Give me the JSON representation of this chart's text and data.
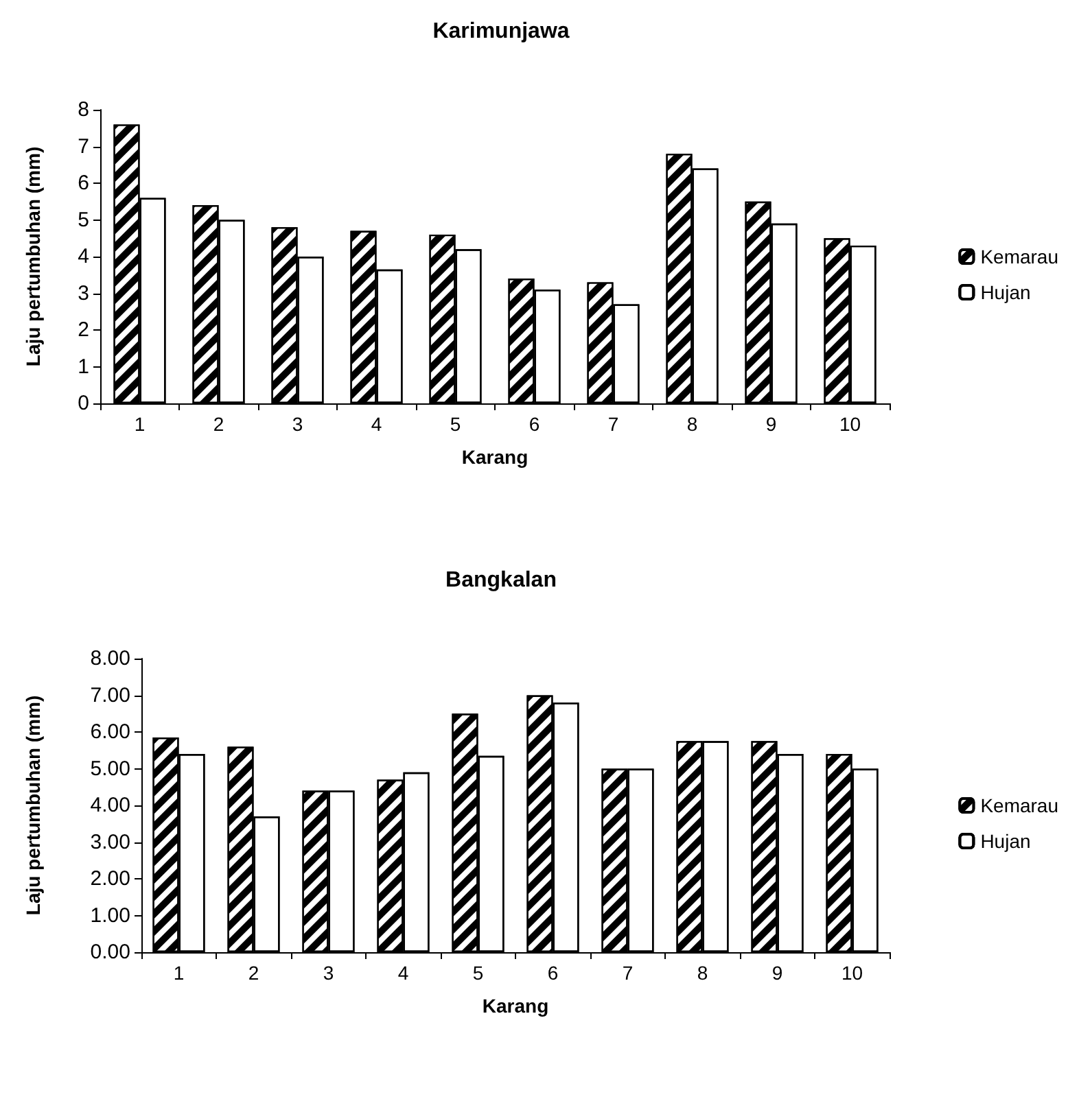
{
  "chart_data": [
    {
      "type": "bar",
      "title": "Karimunjawa",
      "xlabel": "Karang",
      "ylabel": "Laju pertumbuhan (mm)",
      "categories": [
        "1",
        "2",
        "3",
        "4",
        "5",
        "6",
        "7",
        "8",
        "9",
        "10"
      ],
      "series": [
        {
          "name": "Kemarau",
          "color": "#000000",
          "values": [
            7.6,
            5.4,
            4.8,
            4.7,
            4.6,
            3.4,
            3.3,
            6.8,
            5.5,
            4.5
          ]
        },
        {
          "name": "Hujan",
          "color": "#ffffff",
          "values": [
            5.6,
            5.0,
            4.0,
            3.65,
            4.2,
            3.1,
            2.7,
            6.4,
            4.9,
            4.3
          ]
        }
      ],
      "ylim": [
        0,
        8
      ],
      "yticks": [
        0,
        1,
        2,
        3,
        4,
        5,
        6,
        7,
        8
      ],
      "legend": "right",
      "grid": false
    },
    {
      "type": "bar",
      "title": "Bangkalan",
      "xlabel": "Karang",
      "ylabel": "Laju pertumbuhan (mm)",
      "categories": [
        "1",
        "2",
        "3",
        "4",
        "5",
        "6",
        "7",
        "8",
        "9",
        "10"
      ],
      "series": [
        {
          "name": "Kemarau",
          "color": "#000000",
          "values": [
            5.85,
            5.6,
            4.4,
            4.7,
            6.5,
            7.0,
            5.0,
            5.75,
            5.75,
            5.4
          ]
        },
        {
          "name": "Hujan",
          "color": "#ffffff",
          "values": [
            5.4,
            3.7,
            4.4,
            4.9,
            5.35,
            6.8,
            5.0,
            5.75,
            5.4,
            5.0
          ]
        }
      ],
      "ylim": [
        0,
        8
      ],
      "yticks": [
        {
          "value": 0,
          "label": "0.00"
        },
        {
          "value": 1,
          "label": "1.00"
        },
        {
          "value": 2,
          "label": "2.00"
        },
        {
          "value": 3,
          "label": "3.00"
        },
        {
          "value": 4,
          "label": "4.00"
        },
        {
          "value": 5,
          "label": "5.00"
        },
        {
          "value": 6,
          "label": "6.00"
        },
        {
          "value": 7,
          "label": "7.00"
        },
        {
          "value": 8,
          "label": "8.00"
        }
      ],
      "legend": "right",
      "grid": false
    }
  ]
}
